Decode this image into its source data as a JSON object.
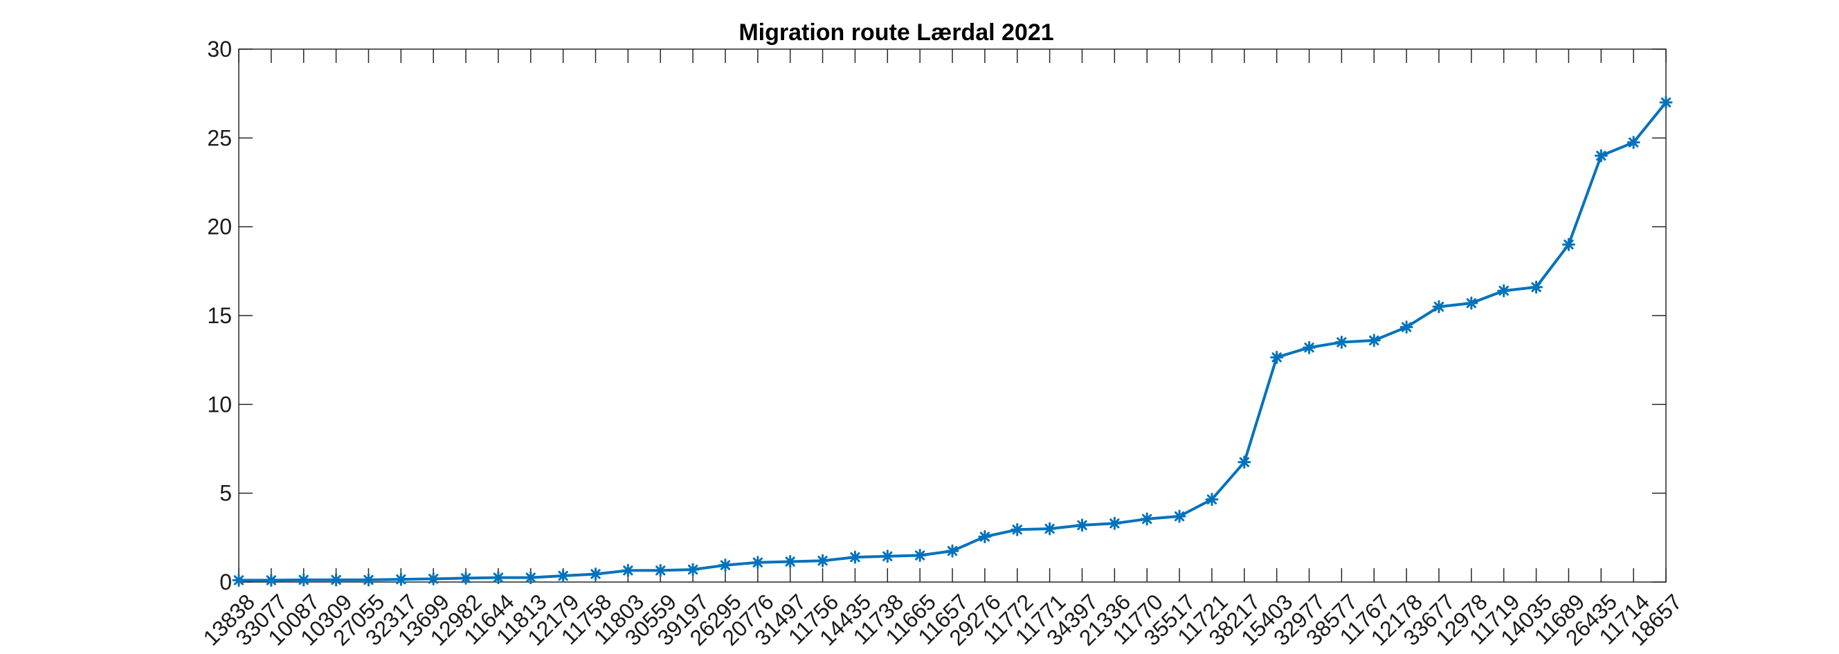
{
  "chart_data": {
    "type": "line",
    "title": "Migration route Lærdal 2021",
    "xlabel": "",
    "ylabel": "",
    "ylim": [
      0,
      30
    ],
    "yticks": [
      0,
      5,
      10,
      15,
      20,
      25,
      30
    ],
    "grid": false,
    "line_color": "#0072BD",
    "marker": "asterisk",
    "categories": [
      "13838",
      "33077",
      "10087",
      "10309",
      "27055",
      "32317",
      "13699",
      "12982",
      "11644",
      "11813",
      "12179",
      "11758",
      "11803",
      "30559",
      "39197",
      "26295",
      "20776",
      "31497",
      "11756",
      "14435",
      "11738",
      "11665",
      "11657",
      "29276",
      "11772",
      "11771",
      "34397",
      "21336",
      "11770",
      "35517",
      "11721",
      "38217",
      "15403",
      "32977",
      "38577",
      "11767",
      "12178",
      "33677",
      "12978",
      "11719",
      "14035",
      "11689",
      "26435",
      "11714",
      "18657"
    ],
    "values": [
      0.1,
      0.1,
      0.12,
      0.12,
      0.12,
      0.15,
      0.18,
      0.22,
      0.25,
      0.25,
      0.35,
      0.45,
      0.65,
      0.65,
      0.7,
      0.95,
      1.1,
      1.15,
      1.2,
      1.4,
      1.45,
      1.5,
      1.75,
      2.55,
      2.95,
      3.0,
      3.2,
      3.3,
      3.55,
      3.7,
      4.65,
      6.75,
      12.65,
      13.2,
      13.5,
      13.6,
      14.35,
      15.5,
      15.7,
      16.4,
      16.6,
      19.0,
      24.0,
      24.75,
      27.0
    ]
  }
}
